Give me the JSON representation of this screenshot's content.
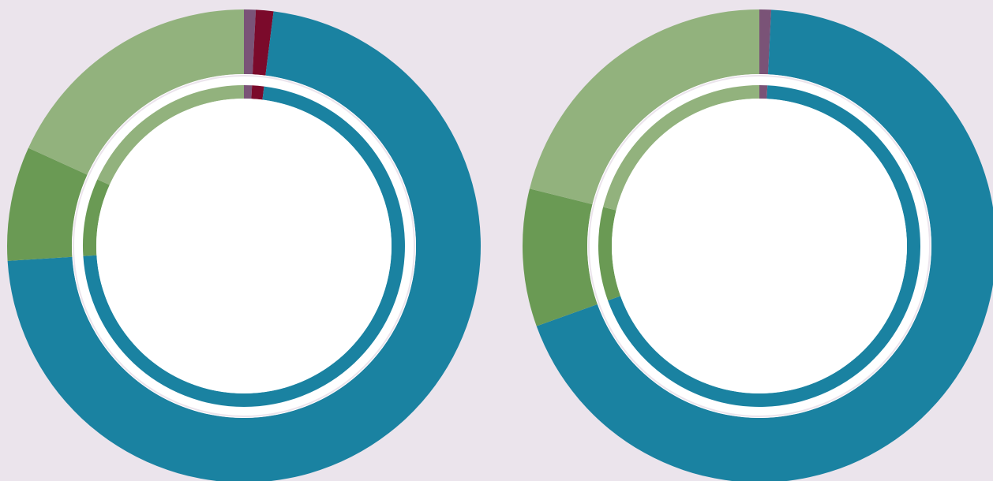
{
  "chart_data": [
    {
      "type": "pie",
      "variant": "donut",
      "start_at": "top",
      "direction": "clockwise",
      "colors": {
        "hole": "#ffffff",
        "background": "#ebe4ec"
      },
      "slices": [
        {
          "key": "purple",
          "value": 0.8,
          "color": "#7a5377"
        },
        {
          "key": "maroon",
          "value": 1.2,
          "color": "#7b0a2b"
        },
        {
          "key": "teal",
          "value": 72.0,
          "color": "#1a82a1"
        },
        {
          "key": "green",
          "value": 7.8,
          "color": "#6a9a54"
        },
        {
          "key": "light_green",
          "value": 18.2,
          "color": "#92b27d"
        }
      ]
    },
    {
      "type": "pie",
      "variant": "donut",
      "start_at": "top",
      "direction": "clockwise",
      "colors": {
        "hole": "#ffffff",
        "background": "#ebe4ec"
      },
      "slices": [
        {
          "key": "purple",
          "value": 0.8,
          "color": "#7a5377"
        },
        {
          "key": "teal",
          "value": 68.7,
          "color": "#1a82a1"
        },
        {
          "key": "green",
          "value": 9.4,
          "color": "#6a9a54"
        },
        {
          "key": "light_green",
          "value": 21.1,
          "color": "#92b27d"
        }
      ]
    }
  ]
}
